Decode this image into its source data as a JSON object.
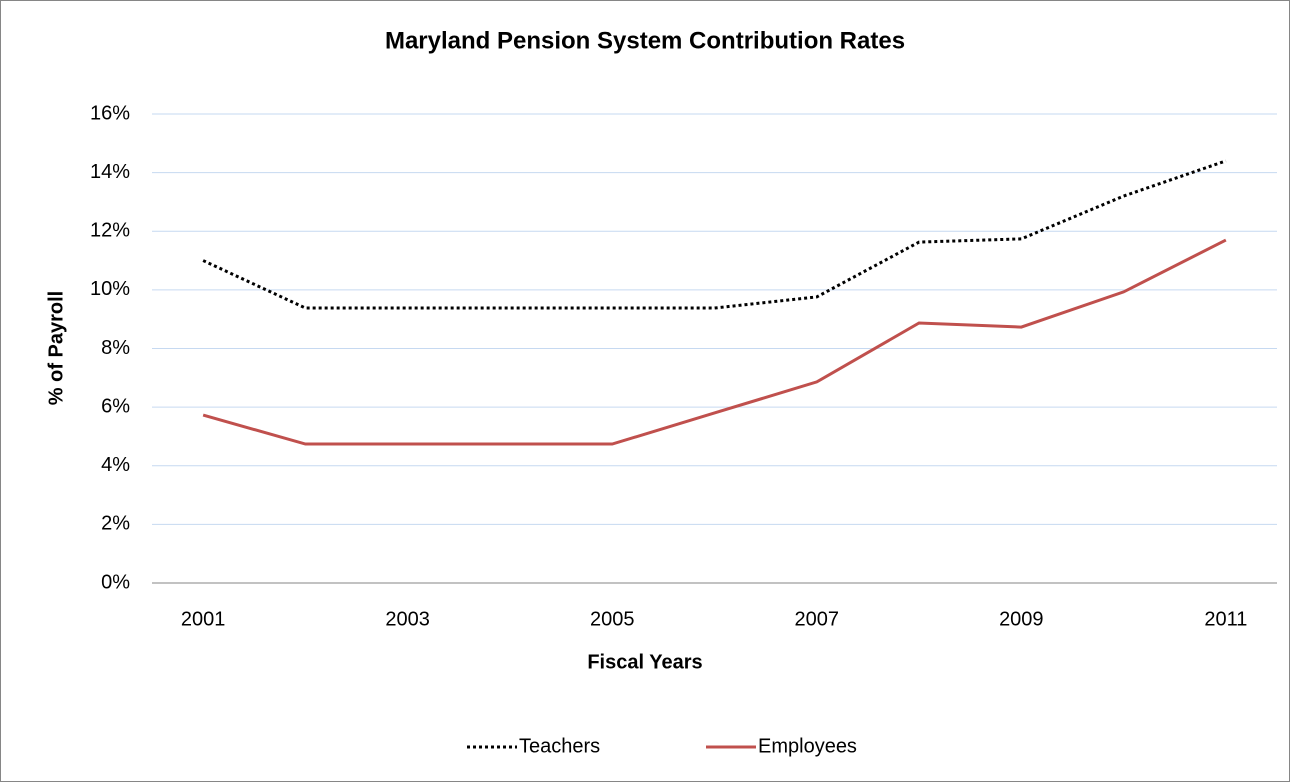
{
  "chart_data": {
    "type": "line",
    "title": "Maryland Pension System Contribution Rates",
    "x_label": "Fiscal Years",
    "y_label": "% of Payroll",
    "x": [
      2001,
      2002,
      2003,
      2004,
      2005,
      2006,
      2007,
      2008,
      2009,
      2010,
      2011
    ],
    "xlim": [
      2000.5,
      2011.5
    ],
    "xticks": [
      2001,
      2003,
      2005,
      2007,
      2009,
      2011
    ],
    "ylim": [
      0,
      16
    ],
    "yticks": [
      {
        "value": 0,
        "label": "0%"
      },
      {
        "value": 2,
        "label": "2%"
      },
      {
        "value": 4,
        "label": "4%"
      },
      {
        "value": 6,
        "label": "6%"
      },
      {
        "value": 8,
        "label": "8%"
      },
      {
        "value": 10,
        "label": "10%"
      },
      {
        "value": 12,
        "label": "12%"
      },
      {
        "value": 14,
        "label": "14%"
      },
      {
        "value": 16,
        "label": "16%"
      }
    ],
    "grid": true,
    "legend": "bottom",
    "series": [
      {
        "name": "Teachers",
        "color": "#000000",
        "style": "dotted",
        "values": [
          11.0,
          9.38,
          9.38,
          9.38,
          9.38,
          9.38,
          9.76,
          11.63,
          11.74,
          13.2,
          14.4
        ]
      },
      {
        "name": "Employees",
        "color": "#c0504d",
        "style": "solid",
        "values": [
          5.73,
          4.74,
          4.74,
          4.74,
          4.74,
          5.8,
          6.86,
          8.87,
          8.73,
          9.93,
          11.7
        ]
      }
    ]
  }
}
